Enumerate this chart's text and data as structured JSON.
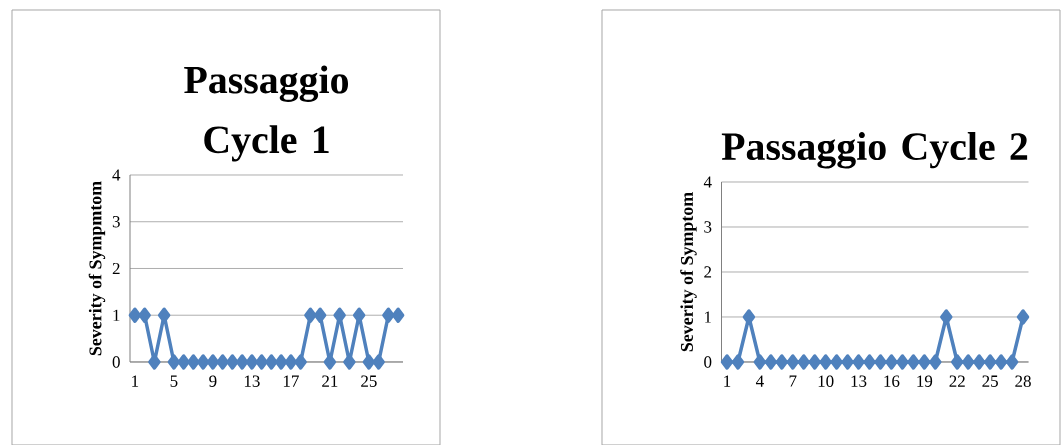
{
  "chart_data": [
    {
      "type": "line",
      "title": "Passaggio Cycle 1",
      "ylabel": "Severity of Sympmtom",
      "categories": [
        "1",
        null,
        null,
        null,
        "5",
        null,
        null,
        null,
        "9",
        null,
        null,
        null,
        "13",
        null,
        null,
        null,
        "17",
        null,
        null,
        null,
        "21",
        null,
        null,
        null,
        "25",
        null,
        null,
        null
      ],
      "values": [
        1,
        1,
        0,
        1,
        0,
        0,
        0,
        0,
        0,
        0,
        0,
        0,
        0,
        0,
        0,
        0,
        0,
        0,
        1,
        1,
        0,
        1,
        0,
        1,
        0,
        0,
        1,
        1
      ],
      "color": "#4f81bd",
      "ylim": [
        0,
        4
      ],
      "yticks": [
        0,
        1,
        2,
        3,
        4
      ],
      "grid": "y",
      "marker": "diamond",
      "line_style": "solid"
    },
    {
      "type": "line",
      "title": "Passaggio Cycle 2",
      "ylabel": "Severity of Symptom",
      "categories": [
        "1",
        null,
        null,
        "4",
        null,
        null,
        "7",
        null,
        null,
        "10",
        null,
        null,
        "13",
        null,
        null,
        "16",
        null,
        null,
        "19",
        null,
        null,
        "22",
        null,
        null,
        "25",
        null,
        null,
        "28"
      ],
      "values": [
        0,
        0,
        1,
        0,
        0,
        0,
        0,
        0,
        0,
        0,
        0,
        0,
        0,
        0,
        0,
        0,
        0,
        0,
        0,
        0,
        1,
        0,
        0,
        0,
        0,
        0,
        0,
        1
      ],
      "color": "#4f81bd",
      "ylim": [
        0,
        4
      ],
      "yticks": [
        0,
        1,
        2,
        3,
        4
      ],
      "grid": "y",
      "marker": "diamond",
      "line_style": "solid"
    }
  ]
}
